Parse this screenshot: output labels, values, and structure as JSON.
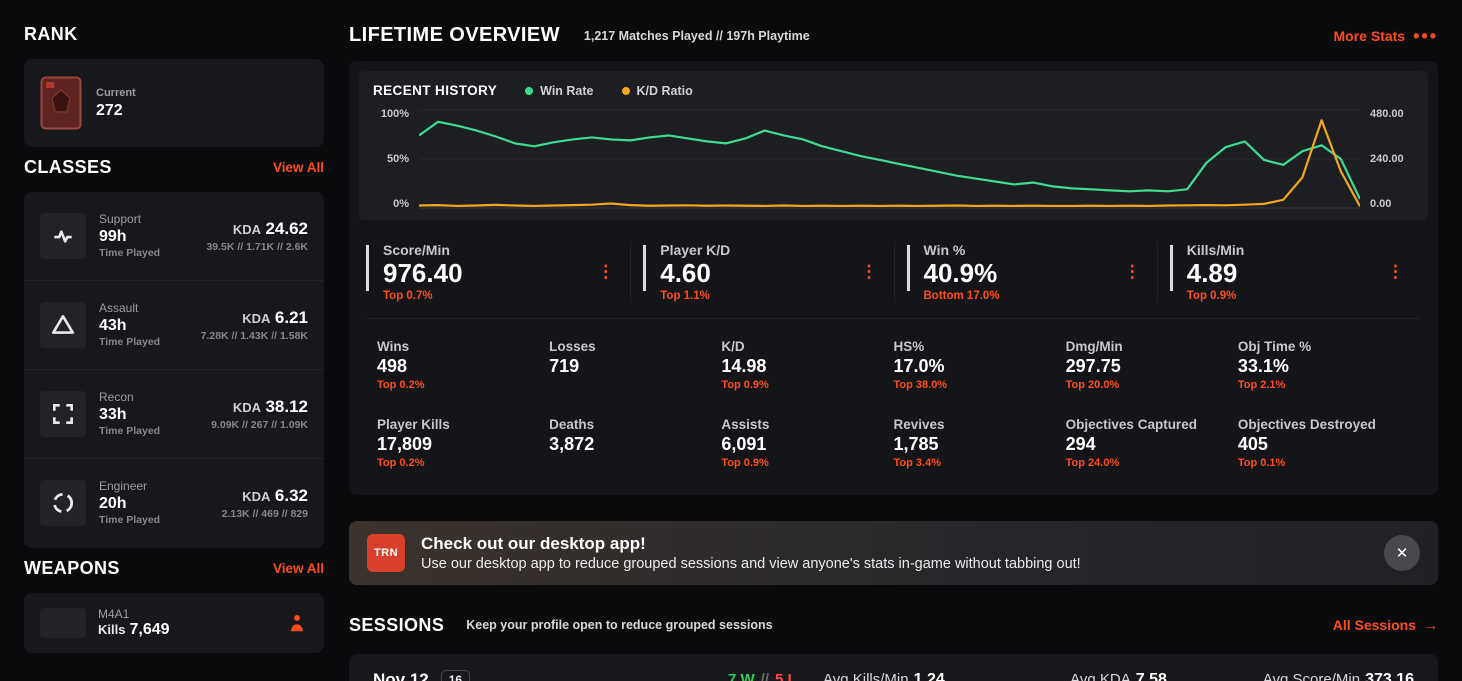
{
  "colors": {
    "accent": "#ff4c1e",
    "win_green": "#2fcf5f",
    "loss_red": "#ff4545",
    "trn_badge_red": "#d8402c"
  },
  "sidebar": {
    "rank": {
      "title": "RANK",
      "label": "Current",
      "value": "272"
    },
    "classes": {
      "title": "CLASSES",
      "view_all": "View All",
      "time_played_label": "Time Played",
      "kda_label": "KDA",
      "items": [
        {
          "name": "Support",
          "hours": "99h",
          "kda": "24.62",
          "detail": "39.5K // 1.71K // 2.6K"
        },
        {
          "name": "Assault",
          "hours": "43h",
          "kda": "6.21",
          "detail": "7.28K // 1.43K // 1.58K"
        },
        {
          "name": "Recon",
          "hours": "33h",
          "kda": "38.12",
          "detail": "9.09K // 267 // 1.09K"
        },
        {
          "name": "Engineer",
          "hours": "20h",
          "kda": "6.32",
          "detail": "2.13K // 469 // 829"
        }
      ]
    },
    "weapons": {
      "title": "WEAPONS",
      "view_all": "View All",
      "items": [
        {
          "name": "M4A1",
          "stat_label": "Kills",
          "stat_value": "7,649"
        }
      ]
    }
  },
  "overview": {
    "title": "LIFETIME OVERVIEW",
    "subtitle": "1,217 Matches Played // 197h Playtime",
    "more_stats": "More Stats",
    "highlights": [
      {
        "label": "Score/Min",
        "value": "976.40",
        "sub": "Top 0.7%"
      },
      {
        "label": "Player K/D",
        "value": "4.60",
        "sub": "Top 1.1%"
      },
      {
        "label": "Win %",
        "value": "40.9%",
        "sub": "Bottom 17.0%"
      },
      {
        "label": "Kills/Min",
        "value": "4.89",
        "sub": "Top 0.9%"
      }
    ],
    "stats": [
      {
        "label": "Wins",
        "value": "498",
        "sub": "Top 0.2%"
      },
      {
        "label": "Losses",
        "value": "719",
        "sub": ""
      },
      {
        "label": "K/D",
        "value": "14.98",
        "sub": "Top 0.9%"
      },
      {
        "label": "HS%",
        "value": "17.0%",
        "sub": "Top 38.0%"
      },
      {
        "label": "Dmg/Min",
        "value": "297.75",
        "sub": "Top 20.0%"
      },
      {
        "label": "Obj Time %",
        "value": "33.1%",
        "sub": "Top 2.1%"
      },
      {
        "label": "Player Kills",
        "value": "17,809",
        "sub": "Top 0.2%"
      },
      {
        "label": "Deaths",
        "value": "3,872",
        "sub": ""
      },
      {
        "label": "Assists",
        "value": "6,091",
        "sub": "Top 0.9%"
      },
      {
        "label": "Revives",
        "value": "1,785",
        "sub": "Top 3.4%"
      },
      {
        "label": "Objectives Captured",
        "value": "294",
        "sub": "Top 24.0%"
      },
      {
        "label": "Objectives Destroyed",
        "value": "405",
        "sub": "Top 0.1%"
      }
    ]
  },
  "chart_data": {
    "type": "line",
    "title": "RECENT HISTORY",
    "legend_position": "top",
    "grid": true,
    "left_axis": {
      "ticks": [
        "100%",
        "50%",
        "0%"
      ],
      "range": [
        0,
        100
      ]
    },
    "right_axis": {
      "ticks": [
        "480.00",
        "240.00",
        "0.00"
      ],
      "range": [
        0,
        480
      ]
    },
    "series": [
      {
        "name": "Win Rate",
        "color": "#3ddc91",
        "axis": "left",
        "values": [
          74,
          88,
          84,
          79,
          73,
          66,
          63,
          67,
          70,
          72,
          70,
          69,
          72,
          74,
          71,
          68,
          66,
          71,
          79,
          74,
          70,
          63,
          58,
          53,
          49,
          45,
          41,
          37,
          33,
          30,
          27,
          24,
          26,
          22,
          20,
          19,
          18,
          17,
          18,
          17,
          19,
          46,
          62,
          68,
          49,
          44,
          58,
          64,
          50,
          9
        ]
      },
      {
        "name": "K/D Ratio",
        "color": "#f2a71b",
        "axis": "right",
        "values": [
          12,
          14,
          10,
          12,
          15,
          12,
          10,
          12,
          14,
          16,
          22,
          14,
          11,
          12,
          13,
          11,
          12,
          11,
          10,
          12,
          10,
          11,
          10,
          11,
          10,
          11,
          10,
          11,
          12,
          10,
          11,
          10,
          11,
          10,
          10,
          11,
          10,
          11,
          10,
          12,
          13,
          14,
          13,
          16,
          20,
          40,
          150,
          430,
          180,
          8
        ]
      }
    ]
  },
  "banner": {
    "badge": "TRN",
    "title": "Check out our desktop app!",
    "text": "Use our desktop app to reduce grouped sessions and view anyone's stats in-game without tabbing out!"
  },
  "sessions": {
    "title": "SESSIONS",
    "subtitle": "Keep your profile open to reduce grouped sessions",
    "all_sessions": "All Sessions",
    "arrow": "→",
    "rows": [
      {
        "date": "Nov 12",
        "matches": "16",
        "wins": "7 W",
        "separator": "//",
        "losses": "5 L",
        "stats": [
          {
            "label": "Avg Kills/Min",
            "value": "1.24"
          },
          {
            "label": "Avg KDA",
            "value": "7.58"
          },
          {
            "label": "Avg Score/Min",
            "value": "373.16"
          }
        ]
      }
    ]
  }
}
